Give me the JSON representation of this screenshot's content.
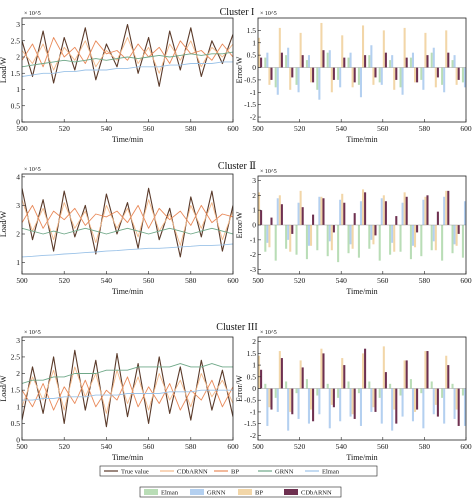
{
  "figure": {
    "legend_lines": [
      {
        "label": "True value",
        "color": "#5a3a2a"
      },
      {
        "label": "CDbARNN",
        "color": "#f4b98a"
      },
      {
        "label": "BP",
        "color": "#e98a5a"
      },
      {
        "label": "GRNN",
        "color": "#6fa888"
      },
      {
        "label": "Elman",
        "color": "#9cc3e8"
      }
    ],
    "legend_bars": [
      {
        "label": "Elman",
        "color": "#b9ddb6"
      },
      {
        "label": "GRNN",
        "color": "#b4d0f0"
      },
      {
        "label": "BP",
        "color": "#f2d6a8"
      },
      {
        "label": "CDbARNN",
        "color": "#6e3050"
      }
    ]
  },
  "chart_data": [
    {
      "panel": "cluster1-load",
      "type": "line",
      "title": "Cluster I",
      "xlabel": "Time/min",
      "ylabel": "Load/W",
      "y_exponent": "× 10^5",
      "xlim": [
        500,
        600
      ],
      "ylim": [
        0,
        3.2
      ],
      "xticks": [
        "500",
        "520",
        "540",
        "560",
        "580",
        "600"
      ],
      "yticks": [
        "0",
        "0.5",
        "1",
        "1.5",
        "2",
        "2.5",
        "3"
      ],
      "x_start": 500,
      "x_step": 5,
      "series": [
        {
          "name": "True value",
          "color": "#5a3a2a",
          "values": [
            2.5,
            1.4,
            2.8,
            1.2,
            2.6,
            1.6,
            2.9,
            1.3,
            2.4,
            1.7,
            3.0,
            1.5,
            2.6,
            1.1,
            2.8,
            1.6,
            2.9,
            1.4,
            2.5,
            1.8,
            2.7
          ]
        },
        {
          "name": "CDbARNN",
          "color": "#f4b98a",
          "values": [
            2.2,
            1.8,
            2.4,
            1.6,
            2.3,
            1.9,
            2.5,
            1.7,
            2.2,
            1.9,
            2.6,
            1.8,
            2.3,
            1.5,
            2.4,
            1.9,
            2.5,
            1.7,
            2.3,
            2.0,
            2.4
          ]
        },
        {
          "name": "BP",
          "color": "#e98a5a",
          "values": [
            1.9,
            2.4,
            1.7,
            2.6,
            2.0,
            2.3,
            1.8,
            2.5,
            2.1,
            2.2,
            1.9,
            2.4,
            2.0,
            2.3,
            1.8,
            2.5,
            2.1,
            2.2,
            1.9,
            2.4,
            2.0
          ]
        },
        {
          "name": "GRNN",
          "color": "#6fa888",
          "values": [
            1.7,
            1.75,
            1.8,
            1.85,
            1.9,
            1.85,
            1.9,
            1.95,
            1.9,
            1.95,
            2.0,
            1.95,
            2.0,
            2.05,
            2.0,
            2.05,
            2.1,
            2.05,
            2.1,
            2.1,
            2.15
          ]
        },
        {
          "name": "Elman",
          "color": "#9cc3e8",
          "values": [
            1.4,
            1.45,
            1.5,
            1.5,
            1.55,
            1.55,
            1.6,
            1.6,
            1.6,
            1.65,
            1.65,
            1.7,
            1.7,
            1.7,
            1.75,
            1.75,
            1.8,
            1.8,
            1.8,
            1.85,
            1.85
          ]
        }
      ]
    },
    {
      "panel": "cluster1-error",
      "type": "bar",
      "xlabel": "Time/min",
      "ylabel": "Error/W",
      "y_exponent": "× 10^5",
      "xlim": [
        500,
        600
      ],
      "ylim": [
        -2.2,
        2.0
      ],
      "xticks": [
        "500",
        "520",
        "540",
        "560",
        "580",
        "600"
      ],
      "yticks": [
        "-2",
        "-1.5",
        "-1",
        "-0.5",
        "0",
        "0.5",
        "1",
        "1.5"
      ],
      "x_start": 500,
      "x_step": 5,
      "series": [
        {
          "name": "Elman",
          "color": "#b9ddb6",
          "values": [
            -0.6,
            0.4,
            -0.8,
            0.5,
            -0.7,
            0.3,
            -0.9,
            0.6,
            -0.5,
            0.4,
            -0.7,
            0.5,
            -0.6,
            0.3,
            -0.8,
            0.4,
            -0.5,
            0.6,
            -0.7,
            0.3,
            -0.6
          ]
        },
        {
          "name": "GRNN",
          "color": "#b4d0f0",
          "values": [
            -0.9,
            0.6,
            -1.1,
            0.8,
            -1.0,
            0.5,
            -1.3,
            0.7,
            -0.8,
            0.6,
            -1.2,
            0.9,
            -0.7,
            0.5,
            -1.1,
            0.6,
            -0.9,
            0.8,
            -1.0,
            0.5,
            -0.8
          ]
        },
        {
          "name": "BP",
          "color": "#f2d6a8",
          "values": [
            1.2,
            -0.7,
            1.6,
            -0.9,
            1.4,
            -0.6,
            1.8,
            -1.0,
            1.3,
            -0.8,
            1.7,
            -0.7,
            1.5,
            -0.9,
            1.6,
            -0.6,
            1.4,
            -0.8,
            1.5,
            -0.7,
            1.3
          ]
        },
        {
          "name": "CDbARNN",
          "color": "#6e3050",
          "values": [
            0.4,
            -0.5,
            0.6,
            -0.4,
            0.5,
            -0.6,
            0.7,
            -0.5,
            0.4,
            -0.6,
            0.5,
            -0.4,
            0.6,
            -0.5,
            0.4,
            -0.6,
            0.5,
            -0.4,
            0.6,
            -0.5,
            0.4
          ]
        }
      ]
    },
    {
      "panel": "cluster2-load",
      "type": "line",
      "title": "Cluster Ⅱ",
      "xlabel": "Time/min",
      "ylabel": "Load/W",
      "y_exponent": "× 10^5",
      "xlim": [
        500,
        600
      ],
      "ylim": [
        0.6,
        4.1
      ],
      "xticks": [
        "500",
        "520",
        "540",
        "560",
        "580",
        "600"
      ],
      "yticks": [
        "1",
        "2",
        "3",
        "4"
      ],
      "x_start": 500,
      "x_step": 5,
      "series": [
        {
          "name": "True value",
          "color": "#5a3a2a",
          "values": [
            3.6,
            1.8,
            3.2,
            1.4,
            3.5,
            1.9,
            3.0,
            1.3,
            3.4,
            2.0,
            3.1,
            1.5,
            3.6,
            1.8,
            2.9,
            1.2,
            3.3,
            1.9,
            3.5,
            1.4,
            3.0
          ]
        },
        {
          "name": "CDbARNN",
          "color": "#f4b98a",
          "values": [
            3.2,
            2.1,
            2.9,
            1.8,
            3.1,
            2.2,
            2.8,
            1.7,
            3.0,
            2.2,
            2.9,
            1.9,
            3.2,
            2.1,
            2.7,
            1.6,
            3.0,
            2.2,
            3.1,
            1.8,
            2.8
          ]
        },
        {
          "name": "BP",
          "color": "#e98a5a",
          "values": [
            2.4,
            3.0,
            2.2,
            2.8,
            2.5,
            2.9,
            2.3,
            2.7,
            2.6,
            2.8,
            2.4,
            3.0,
            2.2,
            2.9,
            2.5,
            2.8,
            2.3,
            3.0,
            2.4,
            2.7,
            2.6
          ]
        },
        {
          "name": "GRNN",
          "color": "#6fa888",
          "values": [
            2.2,
            2.1,
            2.0,
            2.1,
            2.0,
            2.1,
            2.2,
            2.1,
            2.0,
            2.1,
            2.2,
            2.1,
            2.0,
            2.1,
            2.2,
            2.1,
            2.0,
            2.1,
            2.2,
            2.1,
            2.0
          ]
        },
        {
          "name": "Elman",
          "color": "#9cc3e8",
          "values": [
            1.2,
            1.22,
            1.25,
            1.27,
            1.3,
            1.32,
            1.35,
            1.37,
            1.4,
            1.42,
            1.45,
            1.47,
            1.5,
            1.5,
            1.52,
            1.55,
            1.57,
            1.6,
            1.6,
            1.62,
            1.65
          ]
        }
      ]
    },
    {
      "panel": "cluster2-error",
      "type": "bar",
      "xlabel": "Time/min",
      "ylabel": "Error/W",
      "y_exponent": "× 10^5",
      "xlim": [
        500,
        600
      ],
      "ylim": [
        -3.3,
        3.3
      ],
      "xticks": [
        "500",
        "520",
        "540",
        "560",
        "580",
        "600"
      ],
      "yticks": [
        "-3",
        "-2",
        "-1",
        "0",
        "1",
        "2",
        "3"
      ],
      "x_start": 500,
      "x_step": 5,
      "series": [
        {
          "name": "Elman",
          "color": "#b9ddb6",
          "values": [
            -2.2,
            -1.8,
            -2.4,
            -1.6,
            -2.0,
            -2.3,
            -1.7,
            -2.1,
            -2.5,
            -1.9,
            -2.2,
            -1.6,
            -2.4,
            -2.0,
            -1.8,
            -2.3,
            -2.1,
            -1.7,
            -2.4,
            -1.9,
            -2.2
          ]
        },
        {
          "name": "GRNN",
          "color": "#b4d0f0",
          "values": [
            1.6,
            -1.2,
            1.8,
            -1.0,
            1.5,
            -1.4,
            1.9,
            -1.1,
            1.7,
            -1.3,
            1.6,
            -1.0,
            1.8,
            -1.2,
            1.5,
            -1.4,
            1.7,
            -1.1,
            1.9,
            -1.3,
            1.6
          ]
        },
        {
          "name": "BP",
          "color": "#f2d6a8",
          "values": [
            2.2,
            -1.5,
            2.0,
            -1.8,
            2.3,
            -1.4,
            1.9,
            -1.7,
            2.1,
            -1.6,
            2.4,
            -1.3,
            2.0,
            -1.8,
            2.2,
            -1.5,
            1.9,
            -1.7,
            2.3,
            -1.4,
            2.1
          ]
        },
        {
          "name": "CDbARNN",
          "color": "#6e3050",
          "values": [
            1.0,
            0.5,
            1.4,
            -0.6,
            1.2,
            0.7,
            1.8,
            -0.5,
            1.5,
            0.8,
            2.2,
            -0.7,
            1.6,
            0.6,
            1.9,
            -0.5,
            2.0,
            0.9,
            2.3,
            -0.6,
            1.7
          ]
        }
      ]
    },
    {
      "panel": "cluster3-load",
      "type": "line",
      "title": "Cluster III",
      "xlabel": "Time/min",
      "ylabel": "Load/W",
      "y_exponent": "× 10^5",
      "xlim": [
        500,
        600
      ],
      "ylim": [
        0,
        3.1
      ],
      "xticks": [
        "500",
        "520",
        "540",
        "560",
        "580",
        "600"
      ],
      "yticks": [
        "0",
        "0.5",
        "1",
        "1.5",
        "2",
        "2.5",
        "3"
      ],
      "x_start": 500,
      "x_step": 5,
      "series": [
        {
          "name": "True value",
          "color": "#5a3a2a",
          "values": [
            0.6,
            2.2,
            0.8,
            2.5,
            0.5,
            2.7,
            0.9,
            2.4,
            0.4,
            2.6,
            0.7,
            2.3,
            0.5,
            2.5,
            0.8,
            2.2,
            0.6,
            2.4,
            0.9,
            2.1,
            0.7
          ]
        },
        {
          "name": "CDbARNN",
          "color": "#f4b98a",
          "values": [
            1.0,
            1.9,
            1.2,
            2.1,
            0.9,
            2.2,
            1.3,
            2.0,
            0.8,
            2.1,
            1.1,
            1.9,
            0.9,
            2.0,
            1.2,
            1.8,
            1.0,
            2.0,
            1.3,
            1.8,
            1.1
          ]
        },
        {
          "name": "BP",
          "color": "#e98a5a",
          "values": [
            1.5,
            1.0,
            1.7,
            0.9,
            1.6,
            1.1,
            1.8,
            1.0,
            1.5,
            1.2,
            1.9,
            1.0,
            1.6,
            1.1,
            1.7,
            0.9,
            1.5,
            1.2,
            1.8,
            1.0,
            1.6
          ]
        },
        {
          "name": "GRNN",
          "color": "#6fa888",
          "values": [
            1.7,
            1.8,
            1.8,
            1.9,
            1.9,
            2.0,
            2.0,
            2.0,
            2.1,
            2.1,
            2.1,
            2.2,
            2.2,
            2.2,
            2.2,
            2.3,
            2.2,
            2.2,
            2.3,
            2.2,
            2.2
          ]
        },
        {
          "name": "Elman",
          "color": "#9cc3e8",
          "values": [
            1.2,
            1.2,
            1.25,
            1.25,
            1.3,
            1.3,
            1.3,
            1.35,
            1.35,
            1.35,
            1.4,
            1.4,
            1.4,
            1.4,
            1.45,
            1.45,
            1.45,
            1.5,
            1.5,
            1.5,
            1.5
          ]
        }
      ]
    },
    {
      "panel": "cluster3-error",
      "type": "bar",
      "xlabel": "Time/min",
      "ylabel": "Error/W",
      "y_exponent": "× 10^5",
      "xlim": [
        500,
        600
      ],
      "ylim": [
        -2.2,
        2.2
      ],
      "xticks": [
        "500",
        "520",
        "540",
        "560",
        "580",
        "600"
      ],
      "yticks": [
        "-2",
        "-1.5",
        "-1",
        "-0.5",
        "0",
        "0.5",
        "1",
        "1.5",
        "2"
      ],
      "x_start": 500,
      "x_step": 5,
      "series": [
        {
          "name": "Elman",
          "color": "#b9ddb6",
          "values": [
            -0.3,
            0.2,
            -0.4,
            0.3,
            -0.2,
            0.4,
            -0.3,
            0.2,
            -0.4,
            0.3,
            -0.2,
            0.3,
            -0.4,
            0.2,
            -0.3,
            0.4,
            -0.2,
            0.3,
            -0.4,
            0.2,
            -0.3
          ]
        },
        {
          "name": "GRNN",
          "color": "#b4d0f0",
          "values": [
            -1.2,
            -1.6,
            -1.0,
            -1.8,
            -1.3,
            -1.5,
            -1.1,
            -1.7,
            -1.4,
            -1.2,
            -1.6,
            -1.0,
            -1.5,
            -1.8,
            -1.2,
            -1.4,
            -1.7,
            -1.1,
            -1.5,
            -1.3,
            -1.6
          ]
        },
        {
          "name": "BP",
          "color": "#f2d6a8",
          "values": [
            1.4,
            -0.8,
            1.6,
            -1.0,
            1.2,
            -0.9,
            1.7,
            -0.7,
            1.3,
            -1.1,
            1.5,
            -0.8,
            1.8,
            -0.9,
            1.2,
            -1.0,
            1.6,
            -0.7,
            1.4,
            -0.9,
            1.5
          ]
        },
        {
          "name": "CDbARNN",
          "color": "#6e3050",
          "values": [
            0.8,
            -0.9,
            1.3,
            -1.1,
            0.9,
            -1.4,
            1.5,
            -0.8,
            1.0,
            -1.3,
            1.7,
            -1.0,
            0.7,
            -1.5,
            1.2,
            -0.9,
            1.6,
            -1.2,
            1.0,
            -1.6,
            1.4
          ]
        }
      ]
    }
  ]
}
